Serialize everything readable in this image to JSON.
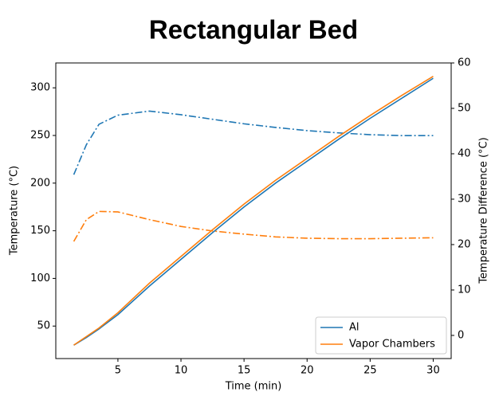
{
  "chart_data": {
    "type": "line",
    "title": "Rectangular Bed",
    "x_label": "Time (min)",
    "y_label": "Temperature (°C)",
    "y2_label": "Temperature Difference (°C)",
    "x": [
      1.5,
      2.5,
      3.5,
      5,
      7.5,
      10,
      12.5,
      15,
      17.5,
      20,
      22.5,
      25,
      27.5,
      30
    ],
    "series": [
      {
        "name": "Al",
        "color": "#1f77b4",
        "values": [
          30,
          38,
          47,
          62,
          92,
          120,
          148,
          175,
          200,
          223,
          246,
          268,
          289,
          310
        ],
        "y2_values": [
          35.4,
          42,
          46.5,
          48.5,
          49.4,
          48.6,
          47.6,
          46.6,
          45.8,
          45.1,
          44.6,
          44.2,
          44.0,
          44.0
        ]
      },
      {
        "name": "Vapor Chambers",
        "color": "#ff7f0e",
        "values": [
          30,
          39,
          48,
          64,
          95,
          123,
          151,
          178,
          203,
          226,
          249,
          271,
          292,
          312
        ],
        "y2_values": [
          20.7,
          25.5,
          27.3,
          27.2,
          25.5,
          24.0,
          23.0,
          22.3,
          21.7,
          21.4,
          21.3,
          21.3,
          21.4,
          21.5
        ]
      }
    ],
    "xlim": [
      0.075,
      31.425
    ],
    "xticks": [
      5,
      10,
      15,
      20,
      25,
      30
    ],
    "ylim": [
      15.9,
      326.1
    ],
    "yticks": [
      50,
      100,
      150,
      200,
      250,
      300
    ],
    "y2lim": [
      -5.1,
      60
    ],
    "y2ticks": [
      0,
      10,
      20,
      30,
      40,
      50,
      60
    ],
    "legend": "lower right"
  }
}
